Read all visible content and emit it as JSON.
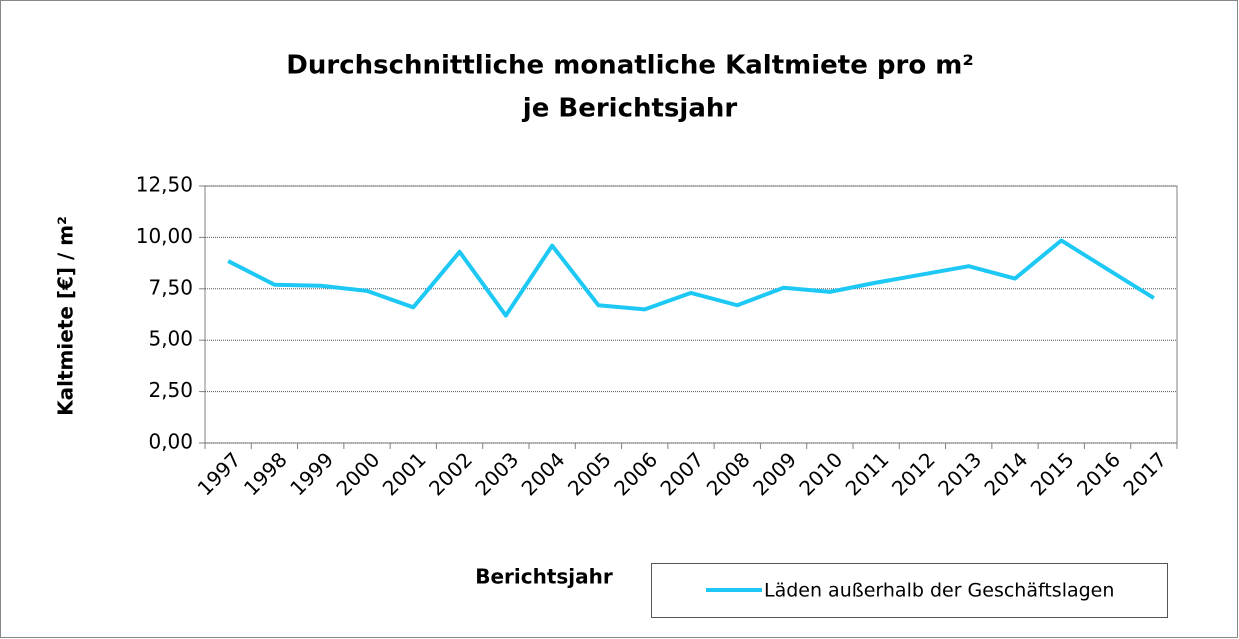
{
  "chart_data": {
    "type": "line",
    "title": [
      "Durchschnittliche monatliche Kaltmiete pro m²",
      "je Berichtsjahr"
    ],
    "x_label": "Berichtsjahr",
    "y_label": "Kaltmiete [€] / m²",
    "categories": [
      "1997",
      "1998",
      "1999",
      "2000",
      "2001",
      "2002",
      "2003",
      "2004",
      "2005",
      "2006",
      "2007",
      "2008",
      "2009",
      "2010",
      "2011",
      "2012",
      "2013",
      "2014",
      "2015",
      "2016",
      "2017"
    ],
    "series": [
      {
        "name": "Läden außerhalb der Geschäftslagen",
        "color": "#1ec8f5",
        "values": [
          8.85,
          7.7,
          7.65,
          7.4,
          6.6,
          9.3,
          6.2,
          9.6,
          6.7,
          6.5,
          7.3,
          6.7,
          7.55,
          7.35,
          7.8,
          8.2,
          8.6,
          8.0,
          9.85,
          8.45,
          7.05
        ]
      }
    ],
    "ylim": [
      0,
      12.5
    ],
    "yticks": [
      {
        "value": 0,
        "label": "0,00"
      },
      {
        "value": 2.5,
        "label": "2,50"
      },
      {
        "value": 5,
        "label": "5,00"
      },
      {
        "value": 7.5,
        "label": "7,50"
      },
      {
        "value": 10,
        "label": "10,00"
      },
      {
        "value": 12.5,
        "label": "12,50"
      }
    ],
    "grid": true
  }
}
